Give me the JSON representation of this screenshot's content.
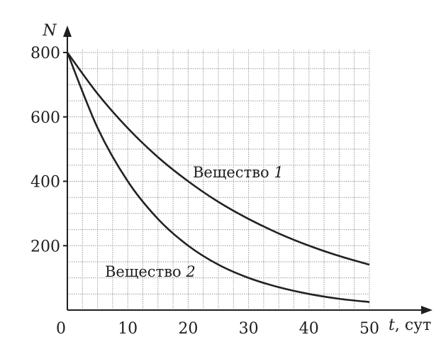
{
  "chart_data": {
    "type": "line",
    "title": "",
    "xlabel_var": "t",
    "xlabel_unit": ", сут",
    "ylabel": "N",
    "xlim": [
      0,
      50
    ],
    "ylim": [
      0,
      800
    ],
    "x_ticks": [
      0,
      10,
      20,
      30,
      40,
      50
    ],
    "y_ticks": [
      200,
      400,
      600,
      800
    ],
    "grid": true,
    "grid_x_step": 2.5,
    "grid_y_step": 50,
    "origin_label": "0",
    "series": [
      {
        "label_text": "Вещество ",
        "label_num": "1",
        "x": [
          0,
          5,
          10,
          15,
          20,
          25,
          30,
          35,
          40,
          45,
          50
        ],
        "y": [
          800,
          672,
          565,
          475,
          400,
          336,
          283,
          238,
          200,
          168,
          141
        ]
      },
      {
        "label_text": "Вещество ",
        "label_num": "2",
        "x": [
          0,
          5,
          10,
          15,
          20,
          25,
          30,
          35,
          40,
          45,
          50
        ],
        "y": [
          800,
          566,
          400,
          283,
          200,
          141,
          100,
          71,
          50,
          35,
          25
        ]
      }
    ],
    "colors": {
      "line": "#222222",
      "grid": "#9a9a9a",
      "axis": "#1e1e1e"
    }
  }
}
